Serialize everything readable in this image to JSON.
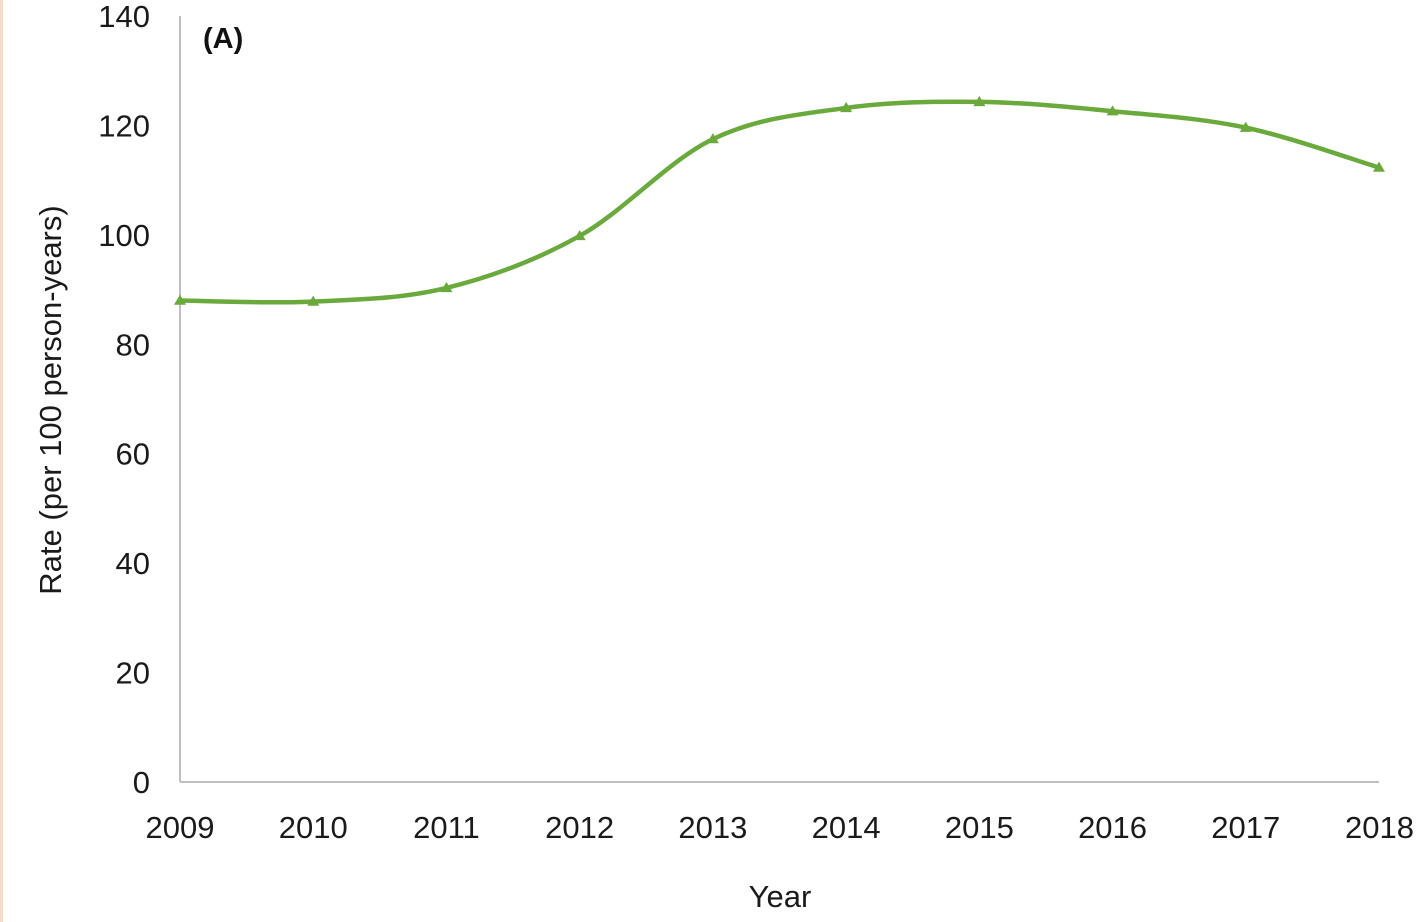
{
  "chart_data": {
    "type": "line",
    "panel_label": "(A)",
    "xlabel": "Year",
    "ylabel": "Rate (per 100 person-years)",
    "x": [
      "2009",
      "2010",
      "2011",
      "2012",
      "2013",
      "2014",
      "2015",
      "2016",
      "2017",
      "2018"
    ],
    "series": [
      {
        "values": [
          88,
          87.8,
          90.3,
          99.8,
          117.5,
          123.2,
          124.3,
          122.6,
          119.6,
          112.3
        ],
        "color": "#6aaa3c",
        "marker": "triangle"
      }
    ],
    "ylim": [
      0,
      140
    ],
    "yticks": [
      "0",
      "20",
      "40",
      "60",
      "80",
      "100",
      "120",
      "140"
    ],
    "grid": false,
    "axis_color": "#bfbfbf"
  }
}
